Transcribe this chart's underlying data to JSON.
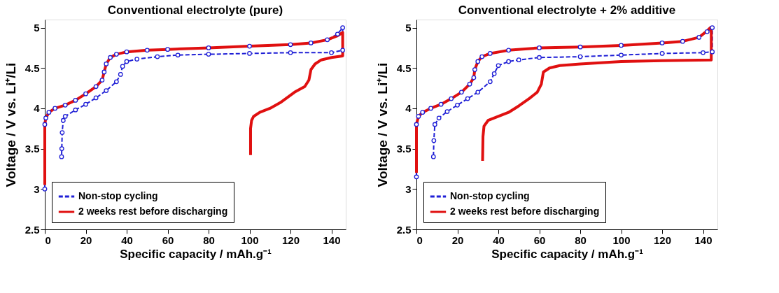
{
  "chart_data": [
    {
      "type": "line",
      "title": "Conventional electrolyte (pure)",
      "xlabel": "Specific capacity / mAh.g⁻¹",
      "ylabel": "Voltage / V vs. Li⁺/Li",
      "xlim": [
        0,
        147
      ],
      "xticks": [
        0,
        20,
        40,
        60,
        80,
        100,
        120,
        140
      ],
      "ylim": [
        2.5,
        5.1
      ],
      "yticks": [
        2.5,
        3,
        3.5,
        4,
        4.5,
        5
      ],
      "grid": false,
      "legend": "bottom left",
      "series": [
        {
          "name": "Non-stop cycling",
          "color": "#1f1fd6",
          "marker": "circle",
          "line_style": "dashed",
          "x": [
            0,
            0,
            0.5,
            2,
            5,
            10,
            15,
            20,
            25,
            28,
            29,
            30,
            32,
            35,
            40,
            50,
            60,
            80,
            100,
            120,
            130,
            138,
            143,
            145.5,
            145.5,
            140,
            120,
            100,
            80,
            65,
            55,
            45,
            40,
            38,
            37,
            35,
            30,
            25,
            20,
            15,
            10,
            9,
            8.5,
            8.3,
            8.2
          ],
          "values": [
            3.0,
            3.8,
            3.88,
            3.95,
            4.0,
            4.04,
            4.1,
            4.18,
            4.27,
            4.35,
            4.45,
            4.55,
            4.63,
            4.67,
            4.7,
            4.72,
            4.73,
            4.75,
            4.77,
            4.79,
            4.81,
            4.85,
            4.92,
            5.0,
            4.72,
            4.69,
            4.69,
            4.68,
            4.67,
            4.66,
            4.64,
            4.61,
            4.58,
            4.52,
            4.42,
            4.33,
            4.22,
            4.13,
            4.05,
            3.98,
            3.9,
            3.85,
            3.7,
            3.5,
            3.4
          ]
        },
        {
          "name": "2 weeks rest before discharging",
          "color": "#e01010",
          "marker": "none",
          "line_style": "solid",
          "x": [
            0,
            0,
            0.5,
            2,
            5,
            10,
            15,
            20,
            25,
            28,
            29,
            30,
            32,
            35,
            40,
            50,
            60,
            80,
            100,
            120,
            130,
            138,
            143,
            145.5,
            145.5,
            140,
            135,
            132,
            130,
            129,
            127,
            122,
            115,
            110,
            105,
            102,
            101,
            100.5,
            100.5
          ],
          "values": [
            3.05,
            3.8,
            3.88,
            3.95,
            4.0,
            4.04,
            4.1,
            4.18,
            4.27,
            4.35,
            4.45,
            4.55,
            4.63,
            4.67,
            4.7,
            4.72,
            4.73,
            4.75,
            4.77,
            4.79,
            4.81,
            4.85,
            4.9,
            4.94,
            4.65,
            4.63,
            4.6,
            4.55,
            4.48,
            4.35,
            4.27,
            4.2,
            4.07,
            4.0,
            3.95,
            3.9,
            3.85,
            3.75,
            3.42
          ]
        }
      ]
    },
    {
      "type": "line",
      "title": "Conventional electrolyte + 2% additive",
      "xlabel": "Specific capacity / mAh.g⁻¹",
      "ylabel": "Voltage / V vs. Li⁺/Li",
      "xlim": [
        0,
        147
      ],
      "xticks": [
        0,
        20,
        40,
        60,
        80,
        100,
        120,
        140
      ],
      "ylim": [
        2.5,
        5.1
      ],
      "yticks": [
        2.5,
        3,
        3.5,
        4,
        4.5,
        5
      ],
      "grid": false,
      "legend": "bottom left",
      "series": [
        {
          "name": "Non-stop cycling",
          "color": "#1f1fd6",
          "marker": "circle",
          "line_style": "dashed",
          "x": [
            0,
            0,
            1,
            3,
            7,
            12,
            17,
            22,
            26,
            28,
            28.5,
            30,
            32,
            36,
            45,
            60,
            80,
            100,
            120,
            130,
            138,
            142,
            144.5,
            144.5,
            140,
            120,
            100,
            80,
            60,
            50,
            45,
            40,
            38,
            36,
            30,
            25,
            20,
            15,
            11,
            9,
            8.5,
            8.3
          ],
          "values": [
            3.15,
            3.8,
            3.9,
            3.95,
            4.0,
            4.05,
            4.12,
            4.2,
            4.3,
            4.38,
            4.48,
            4.58,
            4.64,
            4.68,
            4.72,
            4.75,
            4.76,
            4.78,
            4.81,
            4.83,
            4.88,
            4.95,
            5.0,
            4.7,
            4.69,
            4.68,
            4.66,
            4.64,
            4.63,
            4.6,
            4.58,
            4.53,
            4.43,
            4.33,
            4.2,
            4.12,
            4.04,
            3.96,
            3.88,
            3.8,
            3.6,
            3.4
          ]
        },
        {
          "name": "2 weeks rest before discharging",
          "color": "#e01010",
          "marker": "none",
          "line_style": "solid",
          "x": [
            0,
            0,
            1,
            3,
            7,
            12,
            17,
            22,
            26,
            28,
            28.5,
            30,
            32,
            36,
            45,
            60,
            80,
            100,
            120,
            130,
            138,
            142,
            143.5,
            144,
            144,
            120,
            100,
            80,
            70,
            65,
            62,
            61,
            59,
            55,
            50,
            45,
            40,
            35,
            33,
            32.5,
            32.3
          ],
          "values": [
            3.2,
            3.8,
            3.9,
            3.95,
            4.0,
            4.05,
            4.12,
            4.2,
            4.3,
            4.38,
            4.48,
            4.58,
            4.64,
            4.68,
            4.72,
            4.75,
            4.76,
            4.78,
            4.81,
            4.83,
            4.88,
            4.96,
            5.0,
            4.95,
            4.6,
            4.59,
            4.58,
            4.55,
            4.53,
            4.5,
            4.45,
            4.3,
            4.2,
            4.12,
            4.03,
            3.95,
            3.9,
            3.85,
            3.78,
            3.65,
            3.35
          ]
        }
      ]
    }
  ]
}
